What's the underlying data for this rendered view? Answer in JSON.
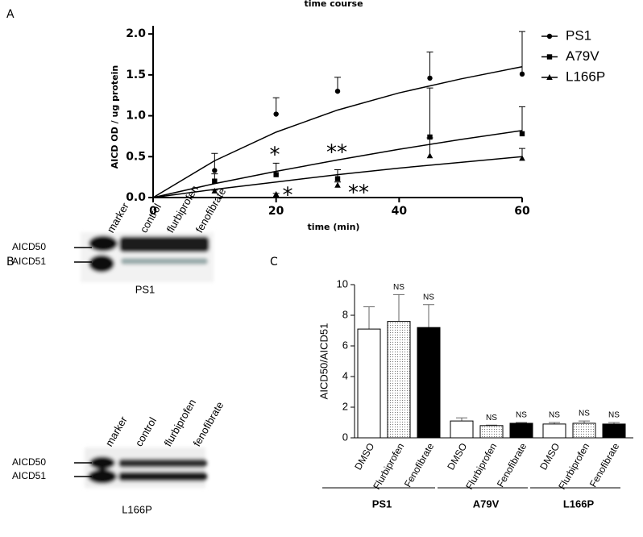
{
  "panels": {
    "a": "A",
    "b": "B",
    "c": "C"
  },
  "chart_data": [
    {
      "type": "scatter",
      "title": "time course",
      "x_label": "time (min)",
      "y_label": "AICD OD / ug protein",
      "x": [
        10,
        20,
        30,
        45,
        60
      ],
      "xlim": [
        0,
        60
      ],
      "xticks": [
        0,
        20,
        40,
        60
      ],
      "ylim": [
        0,
        2.1
      ],
      "yticks": [
        {
          "value": 0,
          "label": "0.0"
        },
        {
          "value": 0.5,
          "label": "0.5"
        },
        {
          "value": 1,
          "label": "1.0"
        },
        {
          "value": 1.5,
          "label": "1.5"
        },
        {
          "value": 2,
          "label": "2.0"
        }
      ],
      "fit_x": [
        0,
        10,
        20,
        30,
        40,
        50,
        60
      ],
      "series": [
        {
          "name": "PS1",
          "color": "#000000",
          "marker": "circle",
          "values": [
            0.33,
            1.02,
            1.3,
            1.46,
            1.51
          ],
          "errors": [
            0.21,
            0.2,
            0.17,
            0.32,
            0.52
          ],
          "fit": [
            0,
            0.45,
            0.8,
            1.07,
            1.28,
            1.45,
            1.6
          ]
        },
        {
          "name": "A79V",
          "color": "#000000",
          "marker": "square",
          "values": [
            0.2,
            0.28,
            0.23,
            0.74,
            0.78
          ],
          "errors": [
            0.09,
            0.14,
            0.11,
            0.6,
            0.33
          ],
          "fit": [
            0,
            0.17,
            0.32,
            0.46,
            0.59,
            0.71,
            0.82
          ]
        },
        {
          "name": "L166P",
          "color": "#000000",
          "marker": "triangle",
          "values": [
            0.08,
            0.04,
            0.15,
            0.51,
            0.48
          ],
          "errors": [
            0.01,
            0.01,
            0.04,
            0.22,
            0.12
          ],
          "fit": [
            0,
            0.1,
            0.19,
            0.28,
            0.36,
            0.43,
            0.5
          ]
        }
      ],
      "annotations": [
        "*",
        "**",
        "*",
        "**"
      ],
      "legend": "right"
    },
    {
      "type": "bar",
      "y_label": "AICD50/AICD51",
      "categories": [
        "DMSO",
        "Flurbiprofen",
        "Fenofibrate",
        "DMSO",
        "Flurbiprofen",
        "Fenofibrate",
        "DMSO",
        "Flurbiprofen",
        "Fenofibrate"
      ],
      "values": [
        7.1,
        7.6,
        7.2,
        1.1,
        0.8,
        0.95,
        0.9,
        0.95,
        0.9
      ],
      "errors": [
        1.45,
        1.75,
        1.5,
        0.2,
        0.03,
        0.05,
        0.1,
        0.15,
        0.1
      ],
      "fills": [
        "white",
        "dotted",
        "black",
        "white",
        "dotted",
        "black",
        "white",
        "dotted",
        "black"
      ],
      "annotations": [
        null,
        "NS",
        "NS",
        null,
        "NS",
        "NS",
        "NS",
        "NS",
        "NS"
      ],
      "groups": [
        "PS1",
        "A79V",
        "L166P"
      ],
      "ylim": [
        0,
        10
      ],
      "yticks": [
        0,
        2,
        4,
        6,
        8,
        10
      ]
    }
  ],
  "blots": [
    {
      "lanes": [
        "marker",
        "control",
        "flurbiprofen",
        "fenofibrate"
      ],
      "bands": [
        "AICD50",
        "AICD51"
      ],
      "caption": "PS1"
    },
    {
      "lanes": [
        "marker",
        "control",
        "flurbiprofen",
        "fenofibrate"
      ],
      "bands": [
        "AICD50",
        "AICD51"
      ],
      "caption": "L166P"
    }
  ]
}
